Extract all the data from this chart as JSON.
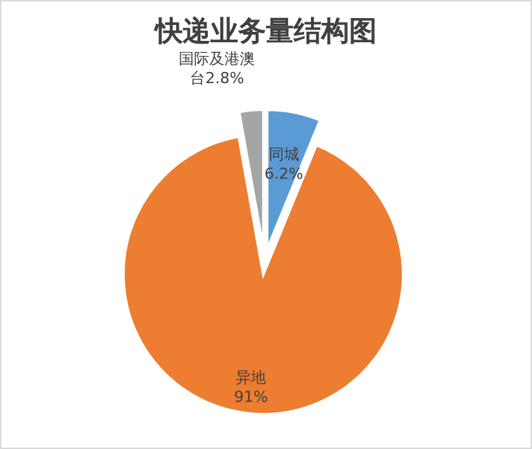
{
  "chart_data": {
    "type": "pie",
    "title": "快递业务量结构图",
    "categories": [
      "同城",
      "异地",
      "国际及港澳台"
    ],
    "values": [
      6.2,
      91,
      2.8
    ],
    "colors": [
      "#5b9bd5",
      "#ed7d31",
      "#a5a5a5"
    ],
    "value_labels": [
      "6.2%",
      "91%",
      "2.8%"
    ]
  }
}
